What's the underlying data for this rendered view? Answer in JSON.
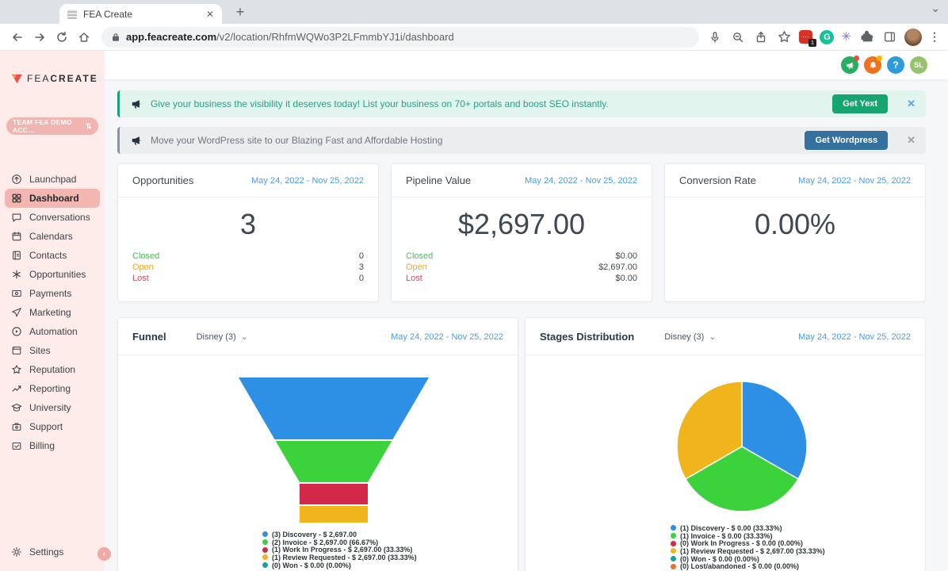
{
  "browser": {
    "tab_title": "FEA Create",
    "url_domain": "app.feacreate.com",
    "url_path": "/v2/location/RhfmWQWo3P2LFmmbYJ1i/dashboard",
    "extension_badge_count": "1"
  },
  "glyphs": {
    "close": "✕",
    "plus": "+",
    "chevron_down": "⌄",
    "chevron_left": "‹",
    "sort_arrows": "⇅",
    "more_vertical": "⋮",
    "purple_ext": "✳",
    "grammarly_g": "G"
  },
  "header": {
    "help_label": "?",
    "avatar_initials": "SL"
  },
  "sidebar": {
    "logo_text_light": "FEA",
    "logo_text_bold": "CREATE",
    "account_switcher_label": "TEAM FEA DEMO ACC...",
    "items": [
      {
        "label": "Launchpad"
      },
      {
        "label": "Dashboard",
        "active": true
      },
      {
        "label": "Conversations"
      },
      {
        "label": "Calendars"
      },
      {
        "label": "Contacts"
      },
      {
        "label": "Opportunities"
      },
      {
        "label": "Payments"
      },
      {
        "label": "Marketing"
      },
      {
        "label": "Automation"
      },
      {
        "label": "Sites"
      },
      {
        "label": "Reputation"
      },
      {
        "label": "Reporting"
      },
      {
        "label": "University"
      },
      {
        "label": "Support"
      },
      {
        "label": "Billing"
      }
    ],
    "settings_label": "Settings"
  },
  "banners": [
    {
      "text": "Give your business the visibility it deserves today! List your business on 70+ portals and boost SEO instantly.",
      "button": "Get Yext"
    },
    {
      "text": "Move your WordPress site to our Blazing Fast and Affordable Hosting",
      "button": "Get Wordpress"
    }
  ],
  "date_range": "May 24, 2022 - Nov 25, 2022",
  "stat_cards": [
    {
      "title": "Opportunities",
      "value": "3",
      "rows": [
        {
          "label": "Closed",
          "value": "0"
        },
        {
          "label": "Open",
          "value": "3"
        },
        {
          "label": "Lost",
          "value": "0"
        }
      ]
    },
    {
      "title": "Pipeline Value",
      "value": "$2,697.00",
      "rows": [
        {
          "label": "Closed",
          "value": "$0.00"
        },
        {
          "label": "Open",
          "value": "$2,697.00"
        },
        {
          "label": "Lost",
          "value": "$0.00"
        }
      ]
    },
    {
      "title": "Conversion Rate",
      "value": "0.00%",
      "rows": []
    }
  ],
  "chart_data": [
    {
      "type": "funnel",
      "title": "Funnel",
      "filter": "Disney (3)",
      "date_range": "May 24, 2022 - Nov 25, 2022",
      "legend_position": "bottom",
      "stages": [
        {
          "count": 3,
          "label": "Discovery",
          "value": "$ 2,697.00",
          "pct": null,
          "color": "#2e90e5"
        },
        {
          "count": 2,
          "label": "Invoice",
          "value": "$ 2,697.00",
          "pct": "66.67%",
          "color": "#3bd23b"
        },
        {
          "count": 1,
          "label": "Work In Progress",
          "value": "$ 2,697.00",
          "pct": "33.33%",
          "color": "#d2294b"
        },
        {
          "count": 1,
          "label": "Review Requested",
          "value": "$ 2,697.00",
          "pct": "33.33%",
          "color": "#f0b41c"
        },
        {
          "count": 0,
          "label": "Won",
          "value": "$ 0.00",
          "pct": "0.00%",
          "color": "#17a398"
        }
      ]
    },
    {
      "type": "pie",
      "title": "Stages Distribution",
      "filter": "Disney (3)",
      "date_range": "May 24, 2022 - Nov 25, 2022",
      "legend_position": "bottom",
      "slices": [
        {
          "count": 1,
          "label": "Discovery",
          "value": "$ 0.00",
          "pct": "33.33%",
          "color": "#2e90e5"
        },
        {
          "count": 1,
          "label": "Invoice",
          "value": "$ 0.00",
          "pct": "33.33%",
          "color": "#3bd23b"
        },
        {
          "count": 0,
          "label": "Work In Progress",
          "value": "$ 0.00",
          "pct": "0.00%",
          "color": "#d2294b"
        },
        {
          "count": 1,
          "label": "Review Requested",
          "value": "$ 2,697.00",
          "pct": "33.33%",
          "color": "#f0b41c"
        },
        {
          "count": 0,
          "label": "Won",
          "value": "$ 0.00",
          "pct": "0.00%",
          "color": "#17a398"
        },
        {
          "count": 0,
          "label": "Lost/abandoned",
          "value": "$ 0.00",
          "pct": "0.00%",
          "color": "#e8702a"
        }
      ]
    }
  ]
}
